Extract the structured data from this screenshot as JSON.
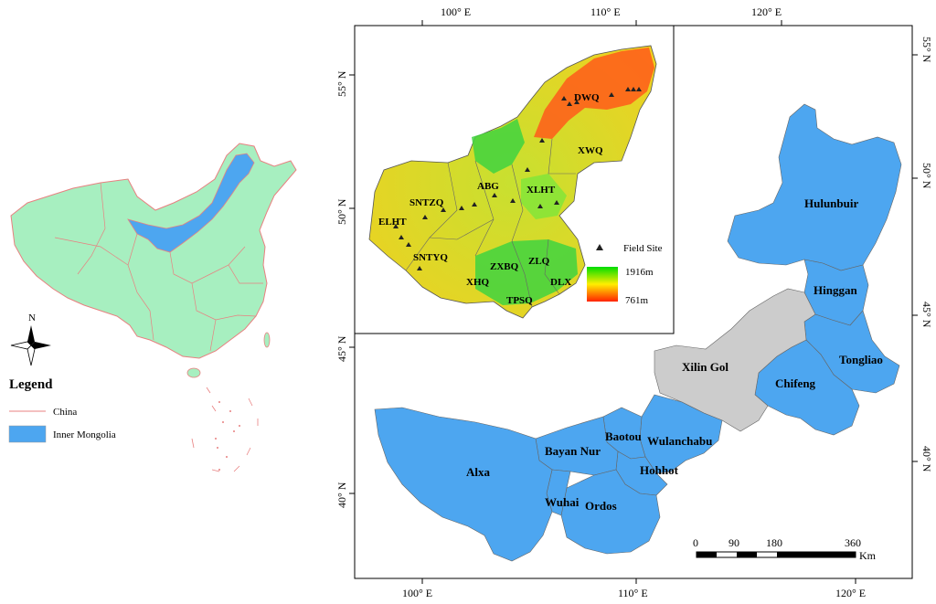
{
  "legend": {
    "title": "Legend",
    "items": [
      {
        "label": "China",
        "color": "#e88080"
      },
      {
        "label": "Inner Mongolia",
        "color": "#4da6f0"
      }
    ],
    "north": "N"
  },
  "main_map": {
    "lon_ticks_bottom": [
      "100° E",
      "110° E",
      "120° E"
    ],
    "lon_ticks_top": [
      "100° E",
      "110° E",
      "120° E"
    ],
    "lat_ticks_left": [
      "45° N",
      "40° N"
    ],
    "lat_ticks_right": [
      "55° N",
      "50° N",
      "45° N",
      "40° N"
    ],
    "regions": [
      {
        "name": "Hulunbuir",
        "color": "#4da6f0"
      },
      {
        "name": "Hinggan",
        "color": "#4da6f0"
      },
      {
        "name": "Tongliao",
        "color": "#4da6f0"
      },
      {
        "name": "Chifeng",
        "color": "#4da6f0"
      },
      {
        "name": "Xilin Gol",
        "color": "#cccccc"
      },
      {
        "name": "Wulanchabu",
        "color": "#4da6f0"
      },
      {
        "name": "Baotou",
        "color": "#4da6f0"
      },
      {
        "name": "Bayan Nur",
        "color": "#4da6f0"
      },
      {
        "name": "Hohhot",
        "color": "#4da6f0"
      },
      {
        "name": "Alxa",
        "color": "#4da6f0"
      },
      {
        "name": "Wuhai",
        "color": "#4da6f0"
      },
      {
        "name": "Ordos",
        "color": "#4da6f0"
      }
    ],
    "scale": {
      "ticks": [
        "0",
        "90",
        "180",
        "360"
      ],
      "unit": "Km"
    }
  },
  "inset": {
    "lat_ticks": [
      "55° N",
      "50° N"
    ],
    "lon_ticks": [
      "100° E",
      "110° E"
    ],
    "sites": [
      "DWQ",
      "XWQ",
      "ABG",
      "XLHT",
      "SNTZQ",
      "ELHT",
      "SNTYQ",
      "ZXBQ",
      "ZLQ",
      "XHQ",
      "DLX",
      "TPSQ"
    ],
    "legend": {
      "field_site": "Field Site",
      "high": "1916m",
      "low": "761m",
      "high_color": "#00dd00",
      "low_color": "#ff2200"
    }
  }
}
